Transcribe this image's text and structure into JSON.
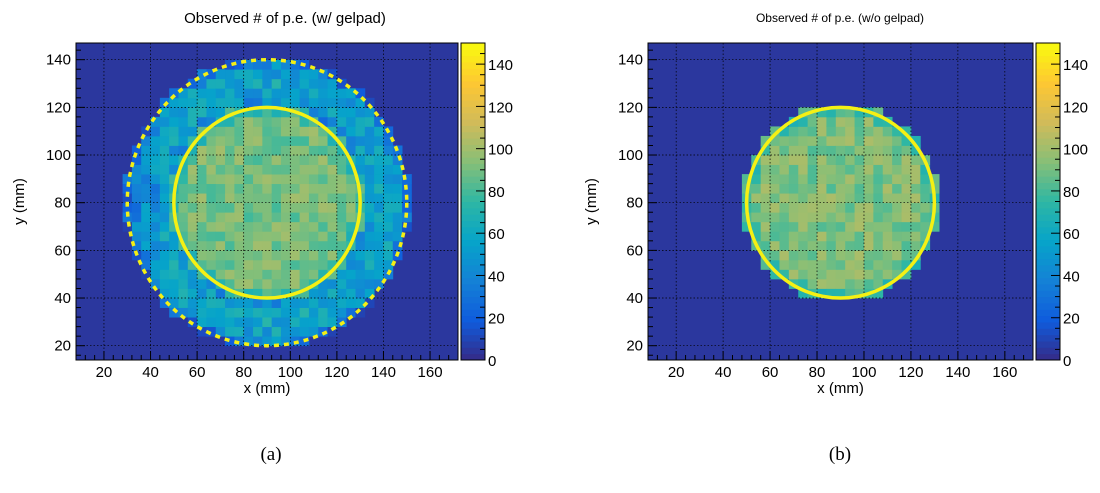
{
  "chart_data": [
    {
      "type": "heatmap",
      "panel": "(a)",
      "title": "Observed # of p.e. (w/ gelpad)",
      "xlabel": "x (mm)",
      "ylabel": "y (mm)",
      "xlim": [
        8,
        172
      ],
      "ylim": [
        14,
        147
      ],
      "xticks": [
        20,
        40,
        60,
        80,
        100,
        120,
        140,
        160
      ],
      "yticks": [
        20,
        40,
        60,
        80,
        100,
        120,
        140
      ],
      "zlim": [
        0,
        150
      ],
      "zticks": [
        0,
        20,
        40,
        60,
        80,
        100,
        120,
        140
      ],
      "grid": true,
      "background_value": 5,
      "circle_overlays": [
        {
          "cx": 90,
          "cy": 80,
          "r": 40,
          "style": "solid",
          "color": "#f5f014"
        },
        {
          "cx": 90,
          "cy": 80,
          "r": 60,
          "style": "dashed",
          "color": "#f5f014"
        }
      ],
      "regions": [
        {
          "shape": "disk",
          "cx": 90,
          "cy": 80,
          "r": 40,
          "value": 90
        },
        {
          "shape": "ring",
          "cx": 90,
          "cy": 80,
          "r_in": 40,
          "r_out": 61,
          "value": 45
        }
      ]
    },
    {
      "type": "heatmap",
      "panel": "(b)",
      "title": "Observed # of p.e. (w/o gelpad)",
      "xlabel": "x (mm)",
      "ylabel": "y (mm)",
      "xlim": [
        8,
        172
      ],
      "ylim": [
        14,
        147
      ],
      "xticks": [
        20,
        40,
        60,
        80,
        100,
        120,
        140,
        160
      ],
      "yticks": [
        20,
        40,
        60,
        80,
        100,
        120,
        140
      ],
      "zlim": [
        0,
        150
      ],
      "zticks": [
        0,
        20,
        40,
        60,
        80,
        100,
        120,
        140
      ],
      "grid": true,
      "background_value": 5,
      "circle_overlays": [
        {
          "cx": 90,
          "cy": 80,
          "r": 40,
          "style": "solid",
          "color": "#f5f014"
        }
      ],
      "regions": [
        {
          "shape": "disk",
          "cx": 90,
          "cy": 80,
          "r": 40,
          "value": 92
        }
      ]
    }
  ]
}
